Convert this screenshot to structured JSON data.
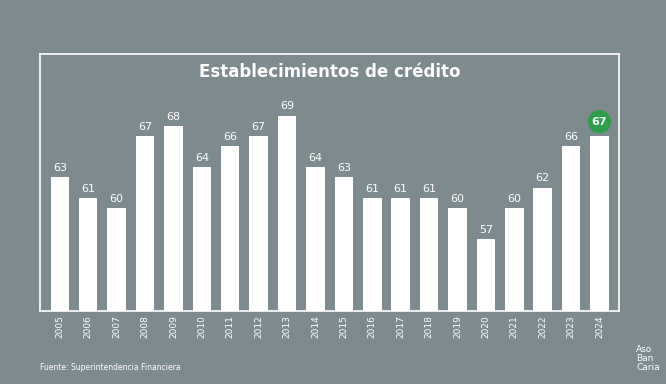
{
  "chart_data": {
    "type": "bar",
    "title": "Establecimientos de crédito",
    "categories": [
      "2005",
      "2006",
      "2007",
      "2008",
      "2009",
      "2010",
      "2011",
      "2012",
      "2013",
      "2014",
      "2015",
      "2016",
      "2017",
      "2018",
      "2019",
      "2020",
      "2021",
      "2022",
      "2023",
      "2024"
    ],
    "values": [
      63,
      61,
      60,
      67,
      68,
      64,
      66,
      67,
      69,
      64,
      63,
      61,
      61,
      61,
      60,
      57,
      60,
      62,
      66,
      67
    ],
    "color": "#ffffff",
    "ylim": [
      50,
      75
    ],
    "yticks": [],
    "grid": false,
    "data_labels": true,
    "tick_labels": "x",
    "source": "Fuente: Superintendencia Financiera",
    "brand": [
      "Aso",
      "Ban",
      "Caria"
    ]
  }
}
